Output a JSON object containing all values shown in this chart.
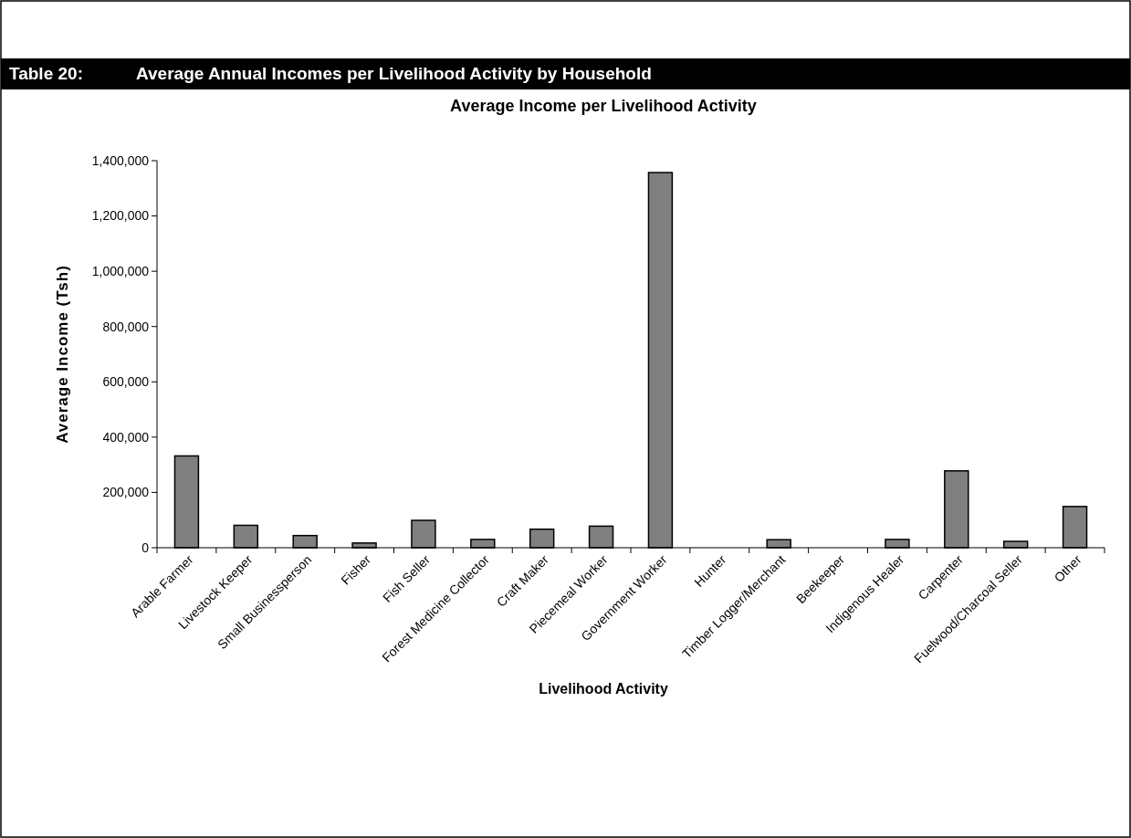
{
  "chart_data": {
    "type": "bar",
    "title": "Table 20:           Average Annual Incomes per Livelihood Activity by Household",
    "subtitle": "Average Income per Livelihood Activity",
    "xlabel": "Livelihood Activity",
    "ylabel": "Average Income (Tsh)",
    "categories": [
      "Arable Farmer",
      "Livestock Keeper",
      "Small Businessperson",
      "Fisher",
      "Fish Seller",
      "Forest Medicine Collector",
      "Craft Maker",
      "Piecemeal Worker",
      "Government Worker",
      "Hunter",
      "Timber Logger/Merchant",
      "Beekeeper",
      "Indigenous Healer",
      "Carpenter",
      "Fuelwood/Charcoal Seller",
      "Other"
    ],
    "values": [
      332000,
      81000,
      44000,
      17000,
      99000,
      30000,
      67000,
      78000,
      1357000,
      0,
      29000,
      0,
      30000,
      278000,
      23000,
      149000
    ],
    "color": "#808080",
    "ylim": [
      0,
      1400000
    ],
    "yticks": [
      {
        "value": 0,
        "label": "0"
      },
      {
        "value": 200000,
        "label": "200,000"
      },
      {
        "value": 400000,
        "label": "400,000"
      },
      {
        "value": 600000,
        "label": "600,000"
      },
      {
        "value": 800000,
        "label": "800,000"
      },
      {
        "value": 1000000,
        "label": "1,000,000"
      },
      {
        "value": 1200000,
        "label": "1,200,000"
      },
      {
        "value": 1400000,
        "label": "1,400,000"
      }
    ],
    "grid": false
  }
}
